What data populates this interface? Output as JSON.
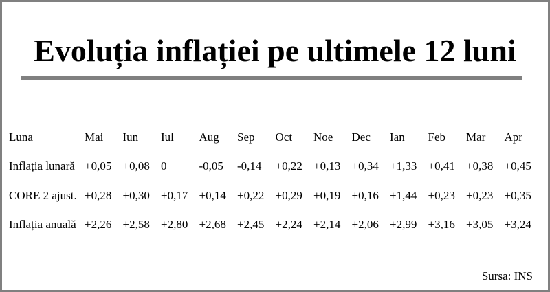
{
  "header": {
    "title": "Evoluția inflației pe ultimele 12 luni"
  },
  "table": {
    "columns": [
      "Luna",
      "Mai",
      "Iun",
      "Iul",
      "Aug",
      "Sep",
      "Oct",
      "Noe",
      "Dec",
      "Ian",
      "Feb",
      "Mar",
      "Apr"
    ],
    "rows": [
      [
        "Inflația lunară",
        "+0,05",
        "+0,08",
        "0",
        "-0,05",
        "-0,14",
        "+0,22",
        "+0,13",
        "+0,34",
        "+1,33",
        "+0,41",
        "+0,38",
        "+0,45"
      ],
      [
        "CORE 2 ajust.",
        "+0,28",
        "+0,30",
        "+0,17",
        "+0,14",
        "+0,22",
        "+0,29",
        "+0,19",
        "+0,16",
        "+1,44",
        "+0,23",
        "+0,23",
        "+0,35"
      ],
      [
        "Inflația anuală",
        "+2,26",
        "+2,58",
        "+2,80",
        "+2,68",
        "+2,45",
        "+2,24",
        "+2,14",
        "+2,06",
        "+2,99",
        "+3,16",
        "+3,05",
        "+3,24"
      ]
    ]
  },
  "footer": {
    "source": "Sursa: INS"
  }
}
